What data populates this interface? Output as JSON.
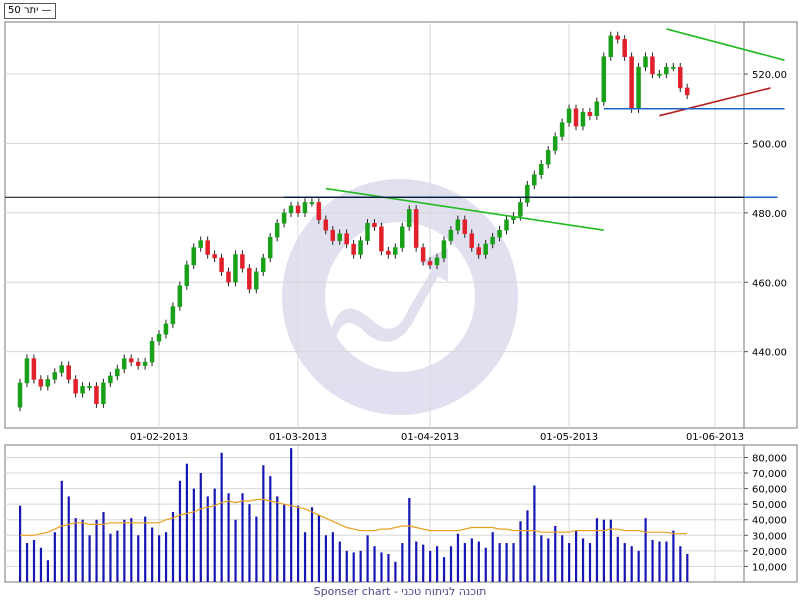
{
  "legend_label": "יתר 50 —",
  "footer_text": "Sponser chart - תוכנה לניתוח טכני",
  "colors": {
    "up": "#18a018",
    "down": "#e0202a",
    "volume": "#1616b4",
    "volume_ma": "#e8a020",
    "trend_green": "#22bb22",
    "trend_red": "#b42020",
    "support_blue": "#1e64c8",
    "black_line": "#000000",
    "grid": "#d8d8d8",
    "watermark": "#c7c7e3"
  },
  "chart_data": [
    {
      "type": "candlestick",
      "title": "",
      "x_tick_labels": [
        "01-02-2013",
        "01-03-2013",
        "01-04-2013",
        "01-05-2013",
        "01-06-2013"
      ],
      "x_tick_sessions": [
        20,
        40,
        59,
        79,
        100
      ],
      "y_tick_labels": [
        "440.00",
        "460.00",
        "480.00",
        "500.00",
        "520.00"
      ],
      "y_ticks": [
        440,
        460,
        480,
        500,
        520
      ],
      "ylim": [
        418,
        535
      ],
      "grid": true,
      "y_axis_side": "right",
      "close": [
        431,
        438,
        432,
        430,
        432,
        434,
        436,
        432,
        428,
        430,
        430,
        425,
        431,
        433,
        435,
        438,
        437,
        436,
        437,
        443,
        445,
        448,
        453,
        459,
        465,
        470,
        472,
        468,
        467,
        463,
        460,
        468,
        464,
        458,
        463,
        467,
        473,
        477,
        480,
        482,
        480,
        483,
        483,
        478,
        475,
        472,
        474,
        471,
        468,
        472,
        477,
        476,
        469,
        468,
        470,
        476,
        481,
        470,
        466,
        465,
        467,
        472,
        475,
        478,
        474,
        470,
        468,
        471,
        473,
        475,
        478,
        479,
        483,
        488,
        491,
        494,
        498,
        502,
        506,
        510,
        505,
        509,
        508,
        512,
        525,
        531,
        530,
        525,
        510,
        522,
        525,
        520,
        520,
        522,
        522,
        516,
        514
      ],
      "trendlines": [
        {
          "color": "trend_green",
          "points": [
            [
              44,
              487
            ],
            [
              84,
              475
            ]
          ]
        },
        {
          "color": "trend_green",
          "points": [
            [
              93,
              533
            ],
            [
              110,
              524
            ]
          ]
        },
        {
          "color": "trend_red",
          "points": [
            [
              92,
              508
            ],
            [
              108,
              516
            ]
          ]
        },
        {
          "color": "support_blue",
          "points": [
            [
              38,
              484.5
            ],
            [
              109,
              484.5
            ]
          ]
        },
        {
          "color": "support_blue",
          "points": [
            [
              84,
              510
            ],
            [
              110,
              510
            ]
          ]
        },
        {
          "color": "black_line",
          "points": [
            [
              0,
              484.5
            ],
            [
              110,
              484.5
            ]
          ]
        }
      ]
    },
    {
      "type": "bar",
      "title": "",
      "y_tick_labels": [
        "10,000",
        "20,000",
        "30,000",
        "40,000",
        "50,000",
        "60,000",
        "70,000",
        "80,000"
      ],
      "y_ticks": [
        10000,
        20000,
        30000,
        40000,
        50000,
        60000,
        70000,
        80000
      ],
      "ylim": [
        0,
        88000
      ],
      "grid": true,
      "y_axis_side": "right",
      "volume": [
        49000,
        25000,
        27000,
        22000,
        14000,
        32000,
        65000,
        55000,
        41000,
        40000,
        30000,
        40000,
        45000,
        31000,
        33000,
        40000,
        41000,
        30000,
        42000,
        35000,
        30000,
        32000,
        45000,
        65000,
        76000,
        60000,
        70000,
        55000,
        60000,
        83000,
        57000,
        40000,
        57000,
        50000,
        42000,
        75000,
        68000,
        55000,
        50000,
        86000,
        49000,
        32000,
        48000,
        43000,
        30000,
        32000,
        26000,
        20000,
        19000,
        20000,
        30000,
        23000,
        19000,
        18000,
        13000,
        25000,
        54000,
        26000,
        24000,
        20000,
        23000,
        16000,
        23000,
        31000,
        25000,
        28000,
        26000,
        22000,
        32000,
        25000,
        25000,
        25000,
        39000,
        46000,
        62000,
        30000,
        28000,
        36000,
        30000,
        25000,
        33000,
        28000,
        25000,
        41000,
        40000,
        40000,
        29000,
        25000,
        23000,
        20000,
        41000,
        27000,
        26000,
        26000,
        33000,
        23000,
        18000
      ],
      "volume_ma": [
        30000,
        30000,
        30000,
        31000,
        32000,
        34000,
        36000,
        37000,
        38000,
        38000,
        37000,
        37000,
        37000,
        38000,
        38000,
        38000,
        38000,
        38000,
        38000,
        38000,
        38000,
        40000,
        41000,
        43000,
        44000,
        45000,
        47000,
        48000,
        49000,
        51000,
        52000,
        51000,
        52000,
        52000,
        53000,
        53000,
        52000,
        51000,
        50000,
        49000,
        48000,
        47000,
        45000,
        43000,
        41000,
        39000,
        37000,
        35000,
        34000,
        33000,
        33000,
        33000,
        34000,
        34000,
        35000,
        36000,
        36000,
        35000,
        34000,
        33000,
        33000,
        33000,
        33000,
        33000,
        34000,
        35000,
        35000,
        35000,
        35000,
        34000,
        34000,
        33000,
        33000,
        33000,
        33000,
        32000,
        32000,
        32000,
        32000,
        32000,
        33000,
        33000,
        33000,
        33000,
        33000,
        34000,
        34000,
        33000,
        33000,
        33000,
        32000,
        32000,
        32000,
        32000,
        31000,
        31000,
        31000
      ]
    }
  ]
}
